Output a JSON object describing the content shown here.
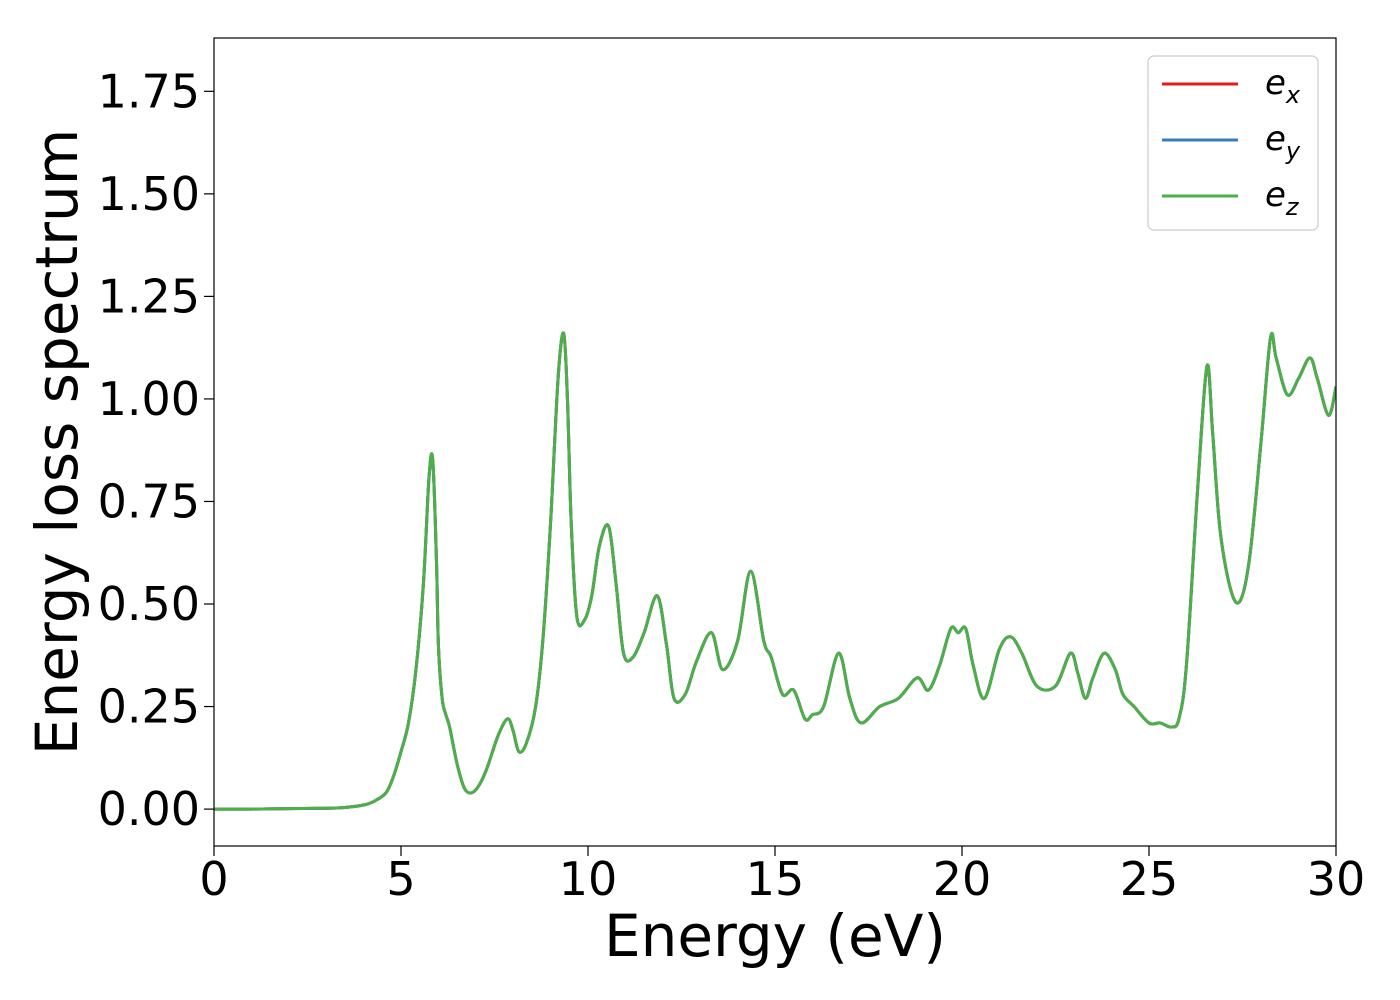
{
  "chart_data": {
    "type": "line",
    "title": "",
    "xlabel": "Energy (eV)",
    "ylabel": "Energy loss spectrum",
    "xlim": [
      0,
      30
    ],
    "ylim": [
      -0.09,
      1.88
    ],
    "xticks": [
      0,
      5,
      10,
      15,
      20,
      25,
      30
    ],
    "xtick_labels": [
      "0",
      "5",
      "10",
      "15",
      "20",
      "25",
      "30"
    ],
    "yticks": [
      0.0,
      0.25,
      0.5,
      0.75,
      1.0,
      1.25,
      1.5,
      1.75
    ],
    "ytick_labels": [
      "0.00",
      "0.25",
      "0.50",
      "0.75",
      "1.00",
      "1.25",
      "1.50",
      "1.75"
    ],
    "grid": false,
    "legend_position": "top-right",
    "x": [
      0,
      1,
      2,
      3,
      3.5,
      4,
      4.3,
      4.6,
      4.8,
      5.0,
      5.2,
      5.4,
      5.6,
      5.75,
      5.85,
      5.95,
      6.0,
      6.1,
      6.2,
      6.3,
      6.5,
      6.7,
      6.9,
      7.1,
      7.3,
      7.6,
      7.85,
      8.0,
      8.15,
      8.35,
      8.6,
      8.8,
      9.0,
      9.2,
      9.35,
      9.45,
      9.55,
      9.7,
      9.9,
      10.1,
      10.3,
      10.55,
      10.75,
      10.95,
      11.2,
      11.5,
      11.85,
      12.1,
      12.3,
      12.6,
      12.9,
      13.3,
      13.6,
      14.0,
      14.35,
      14.7,
      14.9,
      15.2,
      15.5,
      15.8,
      16.0,
      16.3,
      16.7,
      17.0,
      17.3,
      17.8,
      18.3,
      18.8,
      19.1,
      19.4,
      19.7,
      19.9,
      20.1,
      20.3,
      20.6,
      21.0,
      21.3,
      21.6,
      22.0,
      22.5,
      22.9,
      23.1,
      23.3,
      23.5,
      23.8,
      24.1,
      24.3,
      24.6,
      25.0,
      25.3,
      25.6,
      25.8,
      26.0,
      26.3,
      26.55,
      26.7,
      26.9,
      27.2,
      27.45,
      27.7,
      28.0,
      28.25,
      28.4,
      28.7,
      29.0,
      29.3,
      29.5,
      29.8,
      30.0
    ],
    "series": [
      {
        "name": "e",
        "subscript": "x",
        "color": "#e41a1c",
        "values": [
          0.0,
          0.0,
          0.001,
          0.002,
          0.004,
          0.01,
          0.02,
          0.04,
          0.08,
          0.14,
          0.21,
          0.34,
          0.55,
          0.81,
          0.85,
          0.6,
          0.4,
          0.27,
          0.23,
          0.2,
          0.11,
          0.05,
          0.04,
          0.06,
          0.1,
          0.18,
          0.22,
          0.19,
          0.14,
          0.16,
          0.25,
          0.42,
          0.7,
          1.05,
          1.16,
          1.0,
          0.7,
          0.47,
          0.46,
          0.52,
          0.64,
          0.69,
          0.55,
          0.38,
          0.37,
          0.43,
          0.52,
          0.4,
          0.27,
          0.28,
          0.36,
          0.43,
          0.34,
          0.41,
          0.58,
          0.41,
          0.37,
          0.28,
          0.29,
          0.22,
          0.23,
          0.25,
          0.38,
          0.27,
          0.21,
          0.25,
          0.27,
          0.32,
          0.29,
          0.35,
          0.44,
          0.43,
          0.44,
          0.35,
          0.27,
          0.39,
          0.42,
          0.38,
          0.3,
          0.3,
          0.38,
          0.33,
          0.27,
          0.32,
          0.38,
          0.34,
          0.28,
          0.25,
          0.21,
          0.21,
          0.2,
          0.22,
          0.35,
          0.78,
          1.08,
          0.92,
          0.68,
          0.53,
          0.51,
          0.62,
          0.9,
          1.15,
          1.1,
          1.01,
          1.05,
          1.1,
          1.05,
          0.96,
          1.03
        ]
      },
      {
        "name": "e",
        "subscript": "y",
        "color": "#377eb8",
        "values": [
          0.0,
          0.0,
          0.001,
          0.002,
          0.004,
          0.01,
          0.02,
          0.04,
          0.08,
          0.14,
          0.21,
          0.34,
          0.55,
          0.81,
          0.85,
          0.6,
          0.4,
          0.27,
          0.23,
          0.2,
          0.11,
          0.05,
          0.04,
          0.06,
          0.1,
          0.18,
          0.22,
          0.19,
          0.14,
          0.16,
          0.25,
          0.42,
          0.7,
          1.05,
          1.16,
          1.0,
          0.7,
          0.47,
          0.46,
          0.52,
          0.64,
          0.69,
          0.55,
          0.38,
          0.37,
          0.43,
          0.52,
          0.4,
          0.27,
          0.28,
          0.36,
          0.43,
          0.34,
          0.41,
          0.58,
          0.41,
          0.37,
          0.28,
          0.29,
          0.22,
          0.23,
          0.25,
          0.38,
          0.27,
          0.21,
          0.25,
          0.27,
          0.32,
          0.29,
          0.35,
          0.44,
          0.43,
          0.44,
          0.35,
          0.27,
          0.39,
          0.42,
          0.38,
          0.3,
          0.3,
          0.38,
          0.33,
          0.27,
          0.32,
          0.38,
          0.34,
          0.28,
          0.25,
          0.21,
          0.21,
          0.2,
          0.22,
          0.35,
          0.78,
          1.08,
          0.92,
          0.68,
          0.53,
          0.51,
          0.62,
          0.9,
          1.15,
          1.1,
          1.01,
          1.05,
          1.1,
          1.05,
          0.96,
          1.03
        ]
      },
      {
        "name": "e",
        "subscript": "z",
        "color": "#4daf4a",
        "values": [
          0.0,
          0.0,
          0.001,
          0.002,
          0.004,
          0.01,
          0.02,
          0.04,
          0.08,
          0.14,
          0.21,
          0.34,
          0.55,
          0.81,
          0.85,
          0.6,
          0.4,
          0.27,
          0.23,
          0.2,
          0.11,
          0.05,
          0.04,
          0.06,
          0.1,
          0.18,
          0.22,
          0.19,
          0.14,
          0.16,
          0.25,
          0.42,
          0.7,
          1.05,
          1.16,
          1.0,
          0.7,
          0.47,
          0.46,
          0.52,
          0.64,
          0.69,
          0.55,
          0.38,
          0.37,
          0.43,
          0.52,
          0.4,
          0.27,
          0.28,
          0.36,
          0.43,
          0.34,
          0.41,
          0.58,
          0.41,
          0.37,
          0.28,
          0.29,
          0.22,
          0.23,
          0.25,
          0.38,
          0.27,
          0.21,
          0.25,
          0.27,
          0.32,
          0.29,
          0.35,
          0.44,
          0.43,
          0.44,
          0.35,
          0.27,
          0.39,
          0.42,
          0.38,
          0.3,
          0.3,
          0.38,
          0.33,
          0.27,
          0.32,
          0.38,
          0.34,
          0.28,
          0.25,
          0.21,
          0.21,
          0.2,
          0.22,
          0.35,
          0.78,
          1.08,
          0.92,
          0.68,
          0.53,
          0.51,
          0.62,
          0.9,
          1.15,
          1.1,
          1.01,
          1.05,
          1.1,
          1.05,
          0.96,
          1.03
        ]
      }
    ]
  }
}
